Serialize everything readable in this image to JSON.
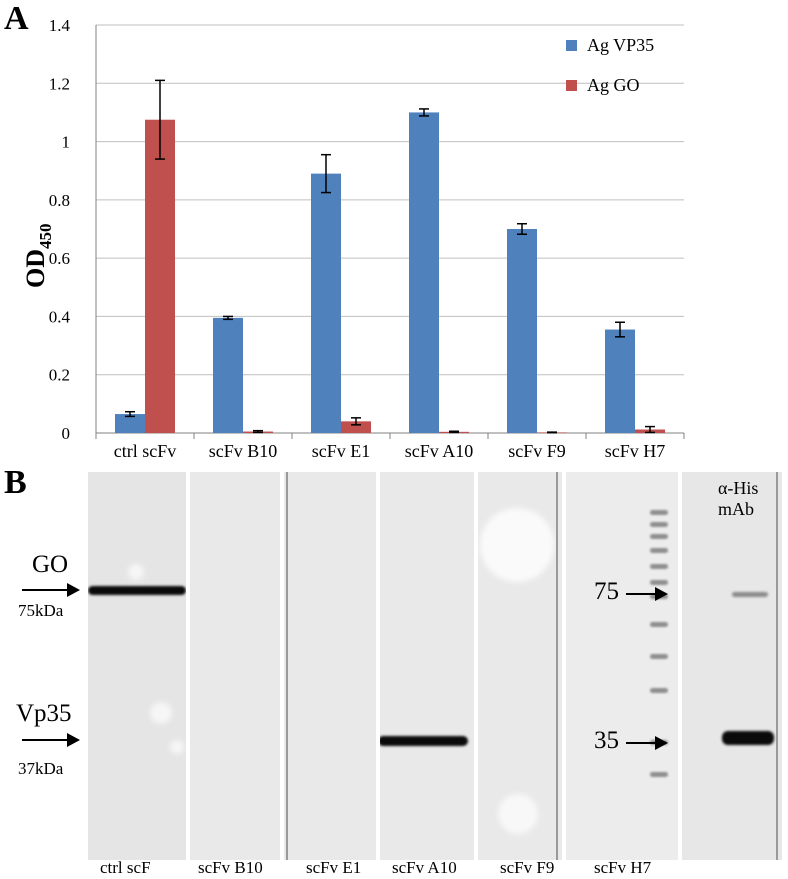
{
  "panel_a": {
    "letter": "A"
  },
  "panel_b": {
    "letter": "B",
    "left_markers": [
      {
        "name": "GO",
        "size": "75kDa"
      },
      {
        "name": "Vp35",
        "size": "37kDa"
      }
    ],
    "right_markers": [
      "75",
      "35"
    ],
    "antibody_label_line1": "α-His",
    "antibody_label_line2": "mAb",
    "lane_labels": [
      "ctrl scF",
      "scFv B10",
      "scFv E1",
      "scFv A10",
      "scFv F9",
      "scFv H7"
    ]
  },
  "chart_data": {
    "type": "bar",
    "categories": [
      "ctrl scFv",
      "scFv B10",
      "scFv E1",
      "scFv A10",
      "scFv F9",
      "scFv H7"
    ],
    "series": [
      {
        "name": "Ag VP35",
        "color": "#4f81bd",
        "values": [
          0.065,
          0.395,
          0.89,
          1.1,
          0.7,
          0.355
        ],
        "errors": [
          0.008,
          0.005,
          0.065,
          0.012,
          0.018,
          0.025
        ]
      },
      {
        "name": "Ag GO",
        "color": "#c0504d",
        "values": [
          1.075,
          0.005,
          0.04,
          0.004,
          0.002,
          0.012
        ],
        "errors": [
          0.135,
          0.003,
          0.012,
          0.002,
          0.001,
          0.01
        ]
      }
    ],
    "ylabel": "OD",
    "ylabel_subscript": "450",
    "ylim": [
      0,
      1.4
    ],
    "yticks": [
      "0",
      "0.2",
      "0.4",
      "0.6",
      "0.8",
      "1",
      "1.2",
      "1.4"
    ],
    "grid": true,
    "legend_position": "top-right"
  }
}
